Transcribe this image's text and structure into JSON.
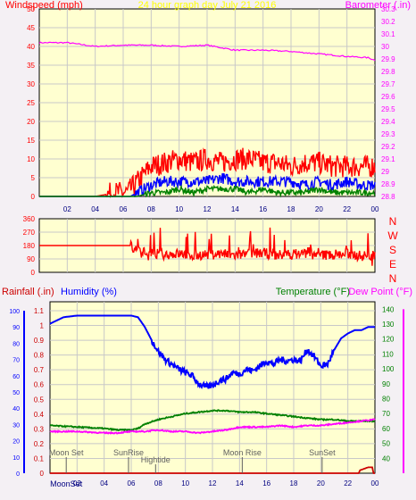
{
  "colors": {
    "background": "#f4f0f4",
    "plot_bg": "#ffffd0",
    "grid": "#c8c8c8",
    "frame": "#000000",
    "wind_gust": "#ff0000",
    "wind_avg": "#0000ff",
    "wind_low": "#008000",
    "barometer": "#ff00ff",
    "direction": "#ff0000",
    "rain": "#cc0000",
    "humidity": "#0000ff",
    "temperature": "#008000",
    "dew_point": "#ff00ff",
    "title": "#ffff00",
    "event": "#606060"
  },
  "chart_data": [
    {
      "id": "wind_barometer",
      "type": "line",
      "title": "24 hour graph day   July 21 2016",
      "left_axis_label": "Windspeed (mph)",
      "right_axis_label": "Barometer (.in)",
      "x_range": [
        0,
        24
      ],
      "x_ticks": [
        "02",
        "04",
        "06",
        "08",
        "10",
        "12",
        "14",
        "16",
        "18",
        "20",
        "22",
        "00"
      ],
      "left_range": [
        0,
        50
      ],
      "left_ticks": [
        "0",
        "5",
        "10",
        "15",
        "20",
        "25",
        "30",
        "35",
        "40",
        "45",
        "50"
      ],
      "right_range": [
        28.8,
        30.3
      ],
      "right_ticks": [
        "28.8",
        "28.9",
        "29",
        "29.1",
        "29.2",
        "29.3",
        "29.4",
        "29.5",
        "29.6",
        "29.7",
        "29.8",
        "29.9",
        "30",
        "30.1",
        "30.2",
        "30.3"
      ],
      "grid": true,
      "series": [
        {
          "axis": "right",
          "color_key": "barometer",
          "x": [
            0,
            2,
            4,
            6,
            8,
            10,
            12,
            14,
            16,
            18,
            20,
            22,
            23.5,
            24
          ],
          "y": [
            30.03,
            30.03,
            30.0,
            30.01,
            30.01,
            30.0,
            30.01,
            29.97,
            29.97,
            29.96,
            29.94,
            29.92,
            29.91,
            29.89
          ]
        },
        {
          "axis": "left",
          "color_key": "wind_gust",
          "x": [
            0,
            4,
            5.5,
            6.3,
            6.8,
            7.5,
            8,
            9,
            10,
            11,
            12,
            13,
            14,
            15,
            16,
            17,
            18,
            19,
            20,
            21,
            22,
            23,
            24
          ],
          "y": [
            0,
            0,
            1,
            1,
            3,
            6,
            8,
            9,
            10,
            9,
            10,
            9,
            10,
            10,
            9,
            9,
            8,
            9,
            9,
            8,
            8,
            8,
            8
          ]
        },
        {
          "axis": "left",
          "color_key": "wind_avg",
          "x": [
            0,
            6.5,
            7,
            7.5,
            8,
            9,
            10,
            11,
            12,
            13,
            14,
            15,
            16,
            17,
            18,
            19,
            20,
            21,
            22,
            23,
            24
          ],
          "y": [
            0,
            0,
            1,
            2,
            3,
            4,
            4,
            4,
            4,
            5,
            4,
            4,
            4,
            4,
            4,
            3,
            4,
            3,
            4,
            3,
            3
          ]
        },
        {
          "axis": "left",
          "color_key": "wind_low",
          "x": [
            0,
            7,
            8,
            9,
            10,
            11,
            12,
            13,
            14,
            15,
            16,
            17,
            18,
            19,
            20,
            21,
            22,
            23,
            24
          ],
          "y": [
            0,
            0,
            1,
            1,
            2,
            1,
            2,
            2,
            2,
            1,
            2,
            1,
            1,
            1,
            2,
            1,
            1,
            1,
            1
          ]
        }
      ]
    },
    {
      "id": "wind_direction",
      "type": "line",
      "x_range": [
        0,
        24
      ],
      "y_range": [
        0,
        360
      ],
      "y_ticks": [
        "0",
        "90",
        "180",
        "270",
        "360"
      ],
      "compass_labels": [
        "N",
        "W",
        "S",
        "E",
        "N"
      ],
      "grid": true,
      "series": [
        {
          "color_key": "direction",
          "x": [
            0,
            6.5,
            7,
            8,
            9,
            10,
            11,
            12,
            13,
            14,
            15,
            16,
            17,
            18,
            19,
            20,
            21,
            22,
            23,
            24
          ],
          "y": [
            180,
            180,
            150,
            125,
            120,
            125,
            115,
            120,
            125,
            115,
            125,
            130,
            115,
            120,
            130,
            115,
            120,
            125,
            110,
            115
          ]
        }
      ]
    },
    {
      "id": "humidity_temperature",
      "type": "line",
      "left_axis_label": "Rainfall (.in)",
      "left_axis_label_2": "Humidity (%)",
      "right_axis_label": "Temperature (°F)",
      "right_axis_label_2": "Dew Point (°F)",
      "x_range": [
        0,
        24
      ],
      "x_ticks": [
        "02",
        "04",
        "06",
        "08",
        "10",
        "12",
        "14",
        "16",
        "18",
        "20",
        "22",
        "00"
      ],
      "rain_range": [
        0,
        1.1
      ],
      "rain_ticks": [
        "0",
        "0.1",
        "0.2",
        "0.3",
        "0.4",
        "0.5",
        "0.6",
        "0.7",
        "0.8",
        "0.9",
        "1",
        "1.1"
      ],
      "humidity_range": [
        0,
        100
      ],
      "humidity_ticks": [
        "0",
        "10",
        "20",
        "30",
        "40",
        "50",
        "60",
        "70",
        "80",
        "90",
        "100"
      ],
      "temp_range": [
        30,
        145
      ],
      "temp_ticks": [
        "40",
        "50",
        "60",
        "70",
        "80",
        "90",
        "100",
        "110",
        "120",
        "130",
        "140"
      ],
      "grid": true,
      "events": [
        {
          "label": "Moon Set",
          "x": 1.2,
          "row": "upper"
        },
        {
          "label": "SunRise",
          "x": 5.8,
          "row": "upper"
        },
        {
          "label": "Hightide",
          "x": 7.8,
          "row": "middle"
        },
        {
          "label": "Moon Rise",
          "x": 14.2,
          "row": "upper"
        },
        {
          "label": "SunSet",
          "x": 20.1,
          "row": "upper"
        },
        {
          "label": "MoonSet",
          "x": 1.2,
          "row": "lower"
        }
      ],
      "series": [
        {
          "axis": "humidity",
          "color_key": "humidity",
          "x": [
            0,
            0.5,
            1,
            2,
            3,
            4,
            5,
            6,
            6.5,
            7,
            7.5,
            8,
            8.5,
            9,
            9.5,
            10,
            10.5,
            11,
            11.5,
            12,
            12.5,
            13,
            13.5,
            14,
            14.5,
            15,
            15.5,
            16,
            16.5,
            17,
            17.5,
            18,
            18.5,
            19,
            19.5,
            20,
            20.5,
            21,
            21.5,
            22,
            22.5,
            23,
            23.5,
            24
          ],
          "y": [
            92,
            94,
            96,
            97,
            97,
            97,
            97,
            97,
            96,
            90,
            82,
            75,
            70,
            67,
            64,
            62,
            60,
            55,
            53,
            54,
            57,
            58,
            62,
            61,
            64,
            63,
            66,
            69,
            67,
            70,
            69,
            70,
            69,
            76,
            72,
            66,
            67,
            76,
            83,
            86,
            88,
            88,
            90,
            90
          ]
        },
        {
          "axis": "temp",
          "color_key": "temperature",
          "x": [
            0,
            2,
            4,
            5,
            6,
            6.5,
            7,
            8,
            9,
            10,
            11,
            12,
            13,
            14,
            15,
            16,
            17,
            18,
            19,
            20,
            21,
            22,
            23,
            24
          ],
          "y": [
            62,
            61,
            60,
            59,
            59,
            60,
            63,
            66,
            68,
            70,
            71,
            72,
            72,
            71,
            71,
            70,
            69,
            68,
            67,
            66,
            66,
            65,
            65,
            65
          ]
        },
        {
          "axis": "temp",
          "color_key": "dew_point",
          "x": [
            0,
            2,
            4,
            5,
            6,
            7,
            8,
            9,
            10,
            11,
            12,
            13,
            14,
            15,
            16,
            17,
            18,
            19,
            20,
            21,
            22,
            23,
            24
          ],
          "y": [
            58,
            58,
            57,
            57,
            58,
            58,
            59,
            58,
            58,
            57,
            58,
            59,
            61,
            61,
            61,
            62,
            61,
            62,
            62,
            63,
            64,
            65,
            66
          ]
        },
        {
          "axis": "rain",
          "color_key": "rain",
          "x": [
            0,
            22.8,
            22.9,
            23.5,
            23.8,
            23.9,
            24
          ],
          "y": [
            0,
            0,
            0.02,
            0.04,
            0.04,
            0,
            0
          ]
        }
      ]
    }
  ]
}
